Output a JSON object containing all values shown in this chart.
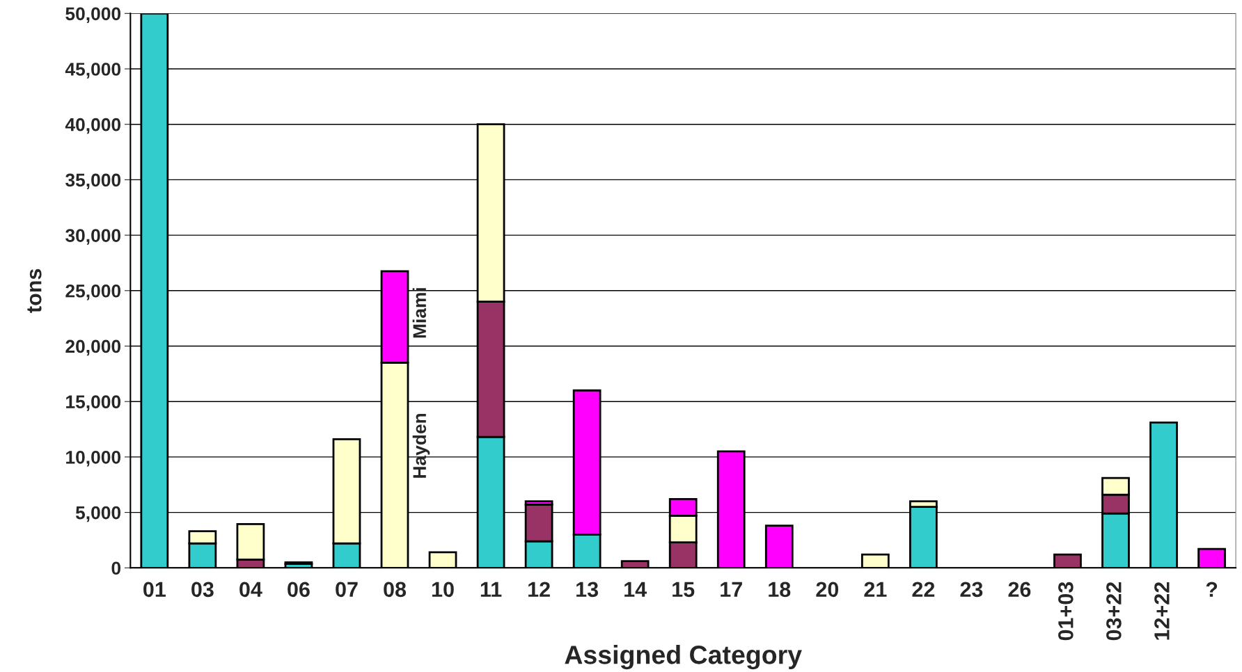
{
  "chart_data": {
    "type": "bar",
    "stacked": true,
    "xlabel": "Assigned Category",
    "ylabel": "tons",
    "categories": [
      "01",
      "03",
      "04",
      "06",
      "07",
      "08",
      "10",
      "11",
      "12",
      "13",
      "14",
      "15",
      "17",
      "18",
      "20",
      "21",
      "22",
      "23",
      "26",
      "01+03",
      "03+22",
      "12+22",
      "?"
    ],
    "series": [
      {
        "color": "#33cccc",
        "values": [
          50000,
          2200,
          null,
          350,
          2200,
          null,
          null,
          11800,
          2400,
          3000,
          null,
          null,
          null,
          null,
          null,
          null,
          5500,
          null,
          null,
          null,
          4900,
          13100,
          null
        ]
      },
      {
        "color": "#993366",
        "values": [
          null,
          null,
          750,
          150,
          null,
          null,
          null,
          12200,
          3300,
          null,
          600,
          2300,
          null,
          null,
          null,
          null,
          null,
          null,
          null,
          1200,
          1700,
          null,
          null
        ]
      },
      {
        "color": "#ffffcc",
        "values": [
          null,
          1100,
          3200,
          null,
          9400,
          18500,
          1400,
          16000,
          null,
          null,
          null,
          2400,
          null,
          null,
          null,
          1200,
          500,
          null,
          null,
          null,
          1500,
          null,
          null
        ]
      },
      {
        "color": "#ff00ff",
        "values": [
          null,
          null,
          null,
          null,
          null,
          8250,
          null,
          null,
          300,
          13000,
          null,
          1500,
          10500,
          3800,
          null,
          null,
          null,
          null,
          null,
          null,
          null,
          null,
          1700
        ]
      }
    ],
    "ylim": [
      0,
      50000
    ],
    "yticks": [
      {
        "value": 0,
        "label": "0"
      },
      {
        "value": 5000,
        "label": "5,000"
      },
      {
        "value": 10000,
        "label": "10,000"
      },
      {
        "value": 15000,
        "label": "15,000"
      },
      {
        "value": 20000,
        "label": "20,000"
      },
      {
        "value": 25000,
        "label": "25,000"
      },
      {
        "value": 30000,
        "label": "30,000"
      },
      {
        "value": 35000,
        "label": "35,000"
      },
      {
        "value": 40000,
        "label": "40,000"
      },
      {
        "value": 45000,
        "label": "45,000"
      },
      {
        "value": 50000,
        "label": "50,000"
      }
    ],
    "grid": "y",
    "annotations": [
      "Hayden",
      "Miami"
    ]
  }
}
